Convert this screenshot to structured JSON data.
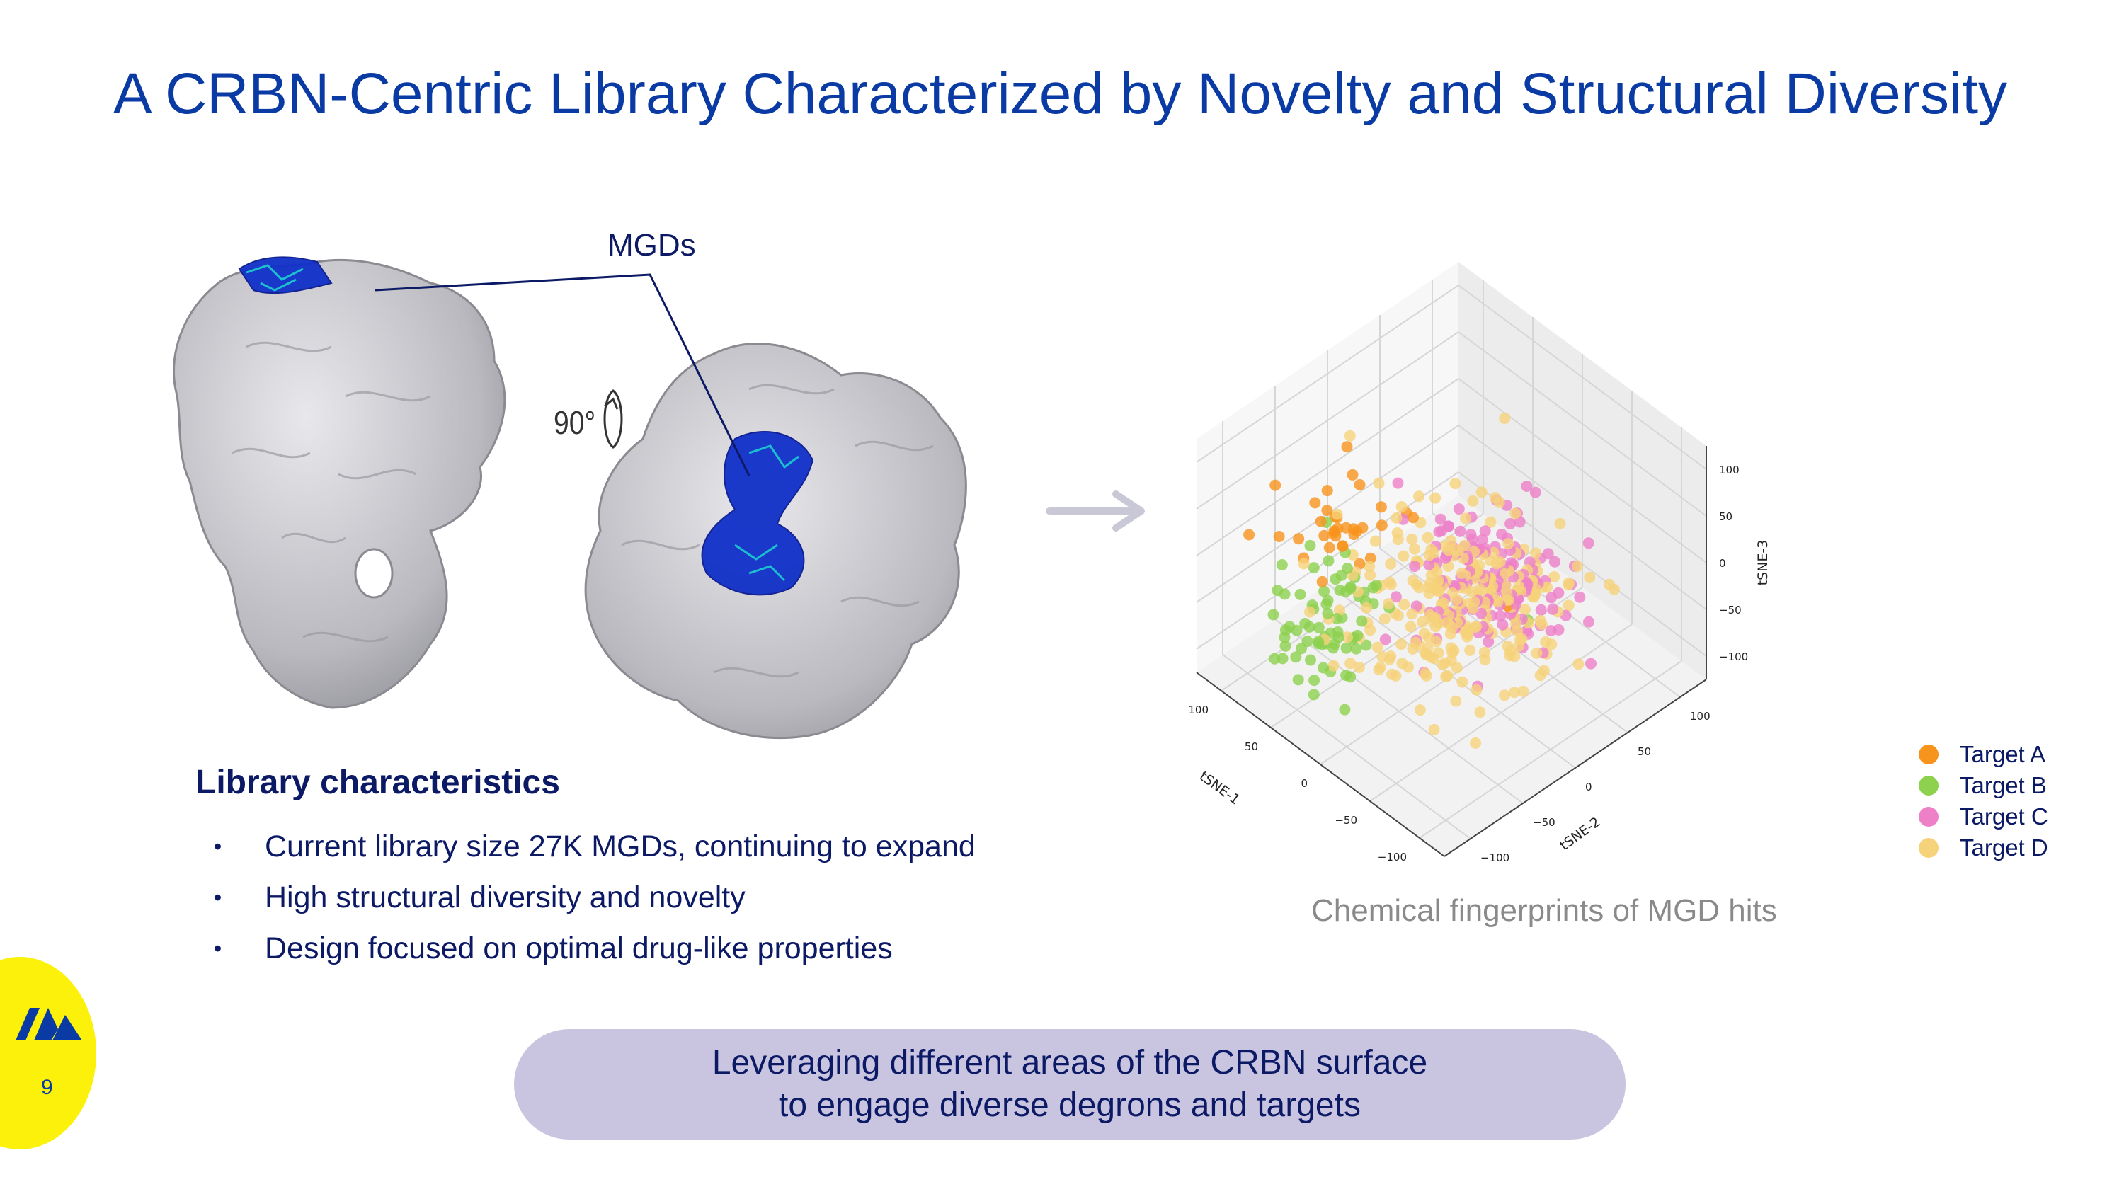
{
  "slide": {
    "title": "A CRBN-Centric Library Characterized by Novelty and Structural Diversity",
    "page_number": "9",
    "colors": {
      "title": "#0a3aa3",
      "text": "#0c1a66",
      "banner": "#c9c4df",
      "corner_badge": "#fbf10a"
    }
  },
  "figure": {
    "mgds_label": "MGDs",
    "rotation_label": "90°",
    "icons": {
      "rotation": "rotate-90-icon",
      "arrow": "right-arrow-icon",
      "logo": "company-logo-icon"
    }
  },
  "library": {
    "heading": "Library characteristics",
    "bullets": [
      "Current library size 27K MGDs, continuing to expand",
      "High structural diversity and novelty",
      "Design focused on optimal drug-like properties"
    ]
  },
  "caption": "Chemical fingerprints of MGD hits",
  "banner": {
    "line1": "Leveraging different areas of the CRBN surface",
    "line2": "to engage diverse degrons and targets"
  },
  "chart_data": {
    "type": "scatter",
    "dimensions": 3,
    "xlabel": "tSNE-1",
    "ylabel": "tSNE-2",
    "zlabel": "tSNE-3",
    "x_ticks": [
      "100",
      "50",
      "0",
      "−50",
      "−100"
    ],
    "y_ticks": [
      "−100",
      "−50",
      "0",
      "50",
      "100"
    ],
    "z_ticks": [
      "100",
      "50",
      "0",
      "−50",
      "−100"
    ],
    "xlim": [
      -125,
      125
    ],
    "ylim": [
      -125,
      125
    ],
    "zlim": [
      -125,
      125
    ],
    "grid": true,
    "legend_position": "right",
    "series": [
      {
        "name": "Target A",
        "color": "#f7941d",
        "center": [
          40,
          -70,
          70
        ],
        "spread": [
          22,
          22,
          14
        ],
        "count": 34
      },
      {
        "name": "Target B",
        "color": "#8dd14f",
        "center": [
          20,
          -95,
          -5
        ],
        "spread": [
          18,
          20,
          28
        ],
        "count": 72
      },
      {
        "name": "Target C",
        "color": "#ee80c8",
        "center": [
          -55,
          -15,
          35
        ],
        "spread": [
          30,
          30,
          26
        ],
        "count": 150
      },
      {
        "name": "Target D",
        "color": "#f6d27a",
        "center": [
          0,
          5,
          -45
        ],
        "spread": [
          38,
          38,
          30
        ],
        "count": 260
      }
    ],
    "outliers": [
      {
        "series": 0,
        "point": [
          -120,
          -60,
          90
        ]
      },
      {
        "series": 1,
        "point": [
          -130,
          -50,
          75
        ]
      },
      {
        "series": 3,
        "point": [
          60,
          -40,
          115
        ]
      },
      {
        "series": 2,
        "point": [
          30,
          90,
          -140
        ]
      },
      {
        "series": 2,
        "point": [
          -35,
          100,
          -160
        ]
      }
    ]
  }
}
